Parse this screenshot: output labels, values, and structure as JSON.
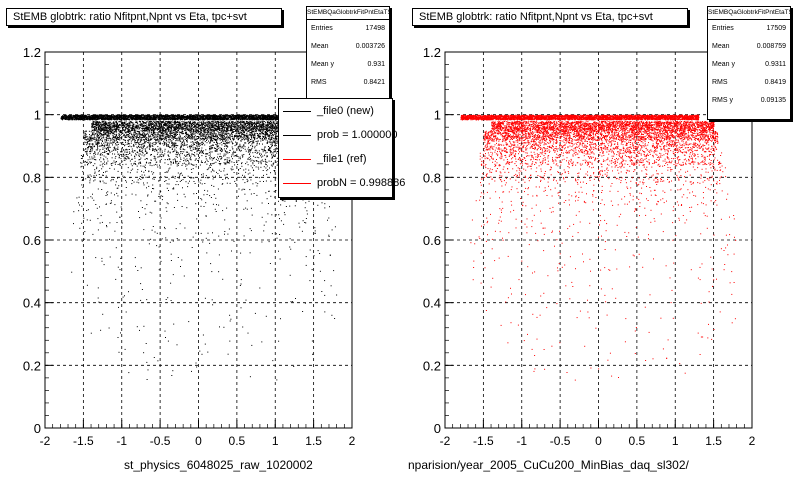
{
  "chart_data": [
    {
      "type": "scatter",
      "title": "StEMB globtrk: ratio Nfitpnt,Npnt vs Eta, tpc+svt",
      "xlabel": "st_physics_6048025_raw_1020002",
      "ylabel": "",
      "xlim": [
        -2,
        2
      ],
      "ylim": [
        0,
        1.2
      ],
      "xticks": [
        "-2",
        "-1.5",
        "-1",
        "-0.5",
        "0",
        "0.5",
        "1",
        "1.5",
        "2"
      ],
      "yticks": [
        "0",
        "0.2",
        "0.4",
        "0.6",
        "0.8",
        "1",
        "1.2"
      ],
      "grid": true,
      "marker_color": "#000000",
      "stats": {
        "name": "StEMBQaGlobtrkFitPntEtaTS",
        "entries_label": "Entries",
        "entries": "17498",
        "mean_label": "Mean",
        "mean": "0.003726",
        "meany_label": "Mean y",
        "meany": "0.931",
        "rms_label": "RMS",
        "rms": "0.8421"
      },
      "legend": {
        "placement": "top-right",
        "entries": [
          {
            "label": "_file0 (new)",
            "color": "#000000"
          },
          {
            "label": "prob = 1.000000",
            "color": "#000000"
          },
          {
            "label": "_file1 (ref)",
            "color": "#ff0000"
          },
          {
            "label": "probN = 0.998886",
            "color": "#ff0000"
          }
        ]
      },
      "density_profile": [
        {
          "y": 1.0,
          "x": [
            -1.8,
            1.3
          ],
          "n": 3600
        },
        {
          "y": 0.98,
          "x": [
            -1.4,
            1.5
          ],
          "n": 2400
        },
        {
          "y": 0.95,
          "x": [
            -1.5,
            1.55
          ],
          "n": 1500
        },
        {
          "y": 0.92,
          "x": [
            -1.5,
            1.55
          ],
          "n": 900
        },
        {
          "y": 0.88,
          "x": [
            -1.55,
            1.6
          ],
          "n": 550
        },
        {
          "y": 0.84,
          "x": [
            -1.55,
            1.65
          ],
          "n": 320
        },
        {
          "y": 0.78,
          "x": [
            -1.6,
            1.7
          ],
          "n": 180
        },
        {
          "y": 0.7,
          "x": [
            -1.7,
            1.8
          ],
          "n": 110
        },
        {
          "y": 0.6,
          "x": [
            -1.7,
            1.8
          ],
          "n": 60
        },
        {
          "y": 0.5,
          "x": [
            -1.7,
            1.8
          ],
          "n": 40
        },
        {
          "y": 0.4,
          "x": [
            -1.7,
            1.8
          ],
          "n": 30
        },
        {
          "y": 0.3,
          "x": [
            -1.2,
            1.5
          ],
          "n": 25
        },
        {
          "y": 0.2,
          "x": [
            -1.0,
            1.3
          ],
          "n": 10
        }
      ]
    },
    {
      "type": "scatter",
      "title": "StEMB globtrk: ratio Nfitpnt,Npnt vs Eta, tpc+svt",
      "xlabel": "nparision/year_2005_CuCu200_MinBias_daq_sl302/",
      "ylabel": "",
      "xlim": [
        -2,
        2
      ],
      "ylim": [
        0,
        1.2
      ],
      "xticks": [
        "-2",
        "-1.5",
        "-1",
        "-0.5",
        "0",
        "0.5",
        "1",
        "1.5",
        "2"
      ],
      "yticks": [
        "0",
        "0.2",
        "0.4",
        "0.6",
        "0.8",
        "1",
        "1.2"
      ],
      "grid": true,
      "marker_color": "#ff0000",
      "stats": {
        "name": "StEMBQaGlobtrkFitPntEtaTS",
        "entries_label": "Entries",
        "entries": "17509",
        "mean_label": "Mean",
        "mean": "0.008759",
        "meany_label": "Mean y",
        "meany": "0.9311",
        "rms_label": "RMS",
        "rms": "0.8419",
        "rmsy_label": "RMS y",
        "rmsy": "0.09135"
      },
      "density_profile": [
        {
          "y": 1.0,
          "x": [
            -1.8,
            1.3
          ],
          "n": 3600
        },
        {
          "y": 0.98,
          "x": [
            -1.4,
            1.5
          ],
          "n": 2400
        },
        {
          "y": 0.95,
          "x": [
            -1.5,
            1.55
          ],
          "n": 1500
        },
        {
          "y": 0.92,
          "x": [
            -1.5,
            1.55
          ],
          "n": 900
        },
        {
          "y": 0.88,
          "x": [
            -1.55,
            1.6
          ],
          "n": 550
        },
        {
          "y": 0.84,
          "x": [
            -1.55,
            1.65
          ],
          "n": 320
        },
        {
          "y": 0.78,
          "x": [
            -1.6,
            1.7
          ],
          "n": 180
        },
        {
          "y": 0.7,
          "x": [
            -1.7,
            1.8
          ],
          "n": 110
        },
        {
          "y": 0.6,
          "x": [
            -1.7,
            1.8
          ],
          "n": 60
        },
        {
          "y": 0.5,
          "x": [
            -1.7,
            1.8
          ],
          "n": 40
        },
        {
          "y": 0.4,
          "x": [
            -1.7,
            1.8
          ],
          "n": 30
        },
        {
          "y": 0.3,
          "x": [
            -1.2,
            1.5
          ],
          "n": 25
        },
        {
          "y": 0.2,
          "x": [
            -1.0,
            1.3
          ],
          "n": 10
        }
      ]
    }
  ]
}
